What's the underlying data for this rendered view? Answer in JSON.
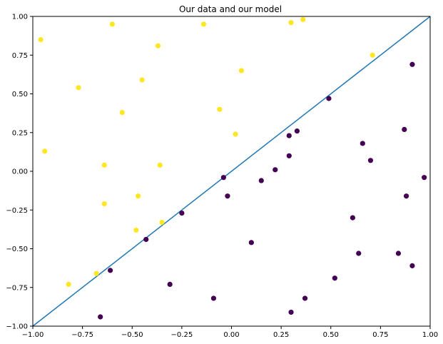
{
  "chart_data": {
    "type": "scatter",
    "title": "Our data and our model",
    "xlabel": "",
    "ylabel": "",
    "xlim": [
      -1.0,
      1.0
    ],
    "ylim": [
      -1.0,
      1.0
    ],
    "xticks": [
      -1.0,
      -0.75,
      -0.5,
      -0.25,
      0.0,
      0.25,
      0.5,
      0.75,
      1.0
    ],
    "yticks": [
      -1.0,
      -0.75,
      -0.5,
      -0.25,
      0.0,
      0.25,
      0.5,
      0.75,
      1.0
    ],
    "xtick_labels": [
      "−1.00",
      "−0.75",
      "−0.50",
      "−0.25",
      "0.00",
      "0.25",
      "0.50",
      "0.75",
      "1.00"
    ],
    "ytick_labels": [
      "−1.00",
      "−0.75",
      "−0.50",
      "−0.25",
      "0.00",
      "0.25",
      "0.50",
      "0.75",
      "1.00"
    ],
    "grid": false,
    "line": {
      "x": [
        -1.0,
        1.0
      ],
      "y": [
        -1.0,
        1.0
      ],
      "color": "#1f77b4"
    },
    "series": [
      {
        "color": "#fde725",
        "points": [
          [
            -0.96,
            0.85
          ],
          [
            -0.6,
            0.95
          ],
          [
            -0.14,
            0.95
          ],
          [
            0.3,
            0.96
          ],
          [
            0.36,
            0.98
          ],
          [
            -0.37,
            0.81
          ],
          [
            -0.77,
            0.54
          ],
          [
            -0.45,
            0.59
          ],
          [
            0.05,
            0.65
          ],
          [
            0.71,
            0.75
          ],
          [
            -0.55,
            0.38
          ],
          [
            -0.06,
            0.4
          ],
          [
            0.02,
            0.24
          ],
          [
            -0.94,
            0.13
          ],
          [
            -0.64,
            0.04
          ],
          [
            -0.36,
            0.04
          ],
          [
            -0.47,
            -0.16
          ],
          [
            -0.64,
            -0.21
          ],
          [
            -0.48,
            -0.38
          ],
          [
            -0.35,
            -0.33
          ],
          [
            -0.68,
            -0.66
          ],
          [
            -0.82,
            -0.73
          ]
        ]
      },
      {
        "color": "#440154",
        "points": [
          [
            0.91,
            0.69
          ],
          [
            0.49,
            0.47
          ],
          [
            0.87,
            0.27
          ],
          [
            0.29,
            0.23
          ],
          [
            0.33,
            0.26
          ],
          [
            0.66,
            0.18
          ],
          [
            0.29,
            0.1
          ],
          [
            0.7,
            0.07
          ],
          [
            0.22,
            0.01
          ],
          [
            -0.04,
            -0.04
          ],
          [
            0.15,
            -0.06
          ],
          [
            0.97,
            -0.04
          ],
          [
            -0.02,
            -0.16
          ],
          [
            0.88,
            -0.16
          ],
          [
            -0.25,
            -0.27
          ],
          [
            0.61,
            -0.3
          ],
          [
            -0.43,
            -0.44
          ],
          [
            0.1,
            -0.46
          ],
          [
            0.64,
            -0.53
          ],
          [
            0.84,
            -0.53
          ],
          [
            -0.61,
            -0.64
          ],
          [
            0.91,
            -0.61
          ],
          [
            0.52,
            -0.69
          ],
          [
            -0.31,
            -0.73
          ],
          [
            -0.09,
            -0.82
          ],
          [
            0.37,
            -0.82
          ],
          [
            0.3,
            -0.91
          ],
          [
            -0.66,
            -0.94
          ]
        ]
      }
    ]
  }
}
